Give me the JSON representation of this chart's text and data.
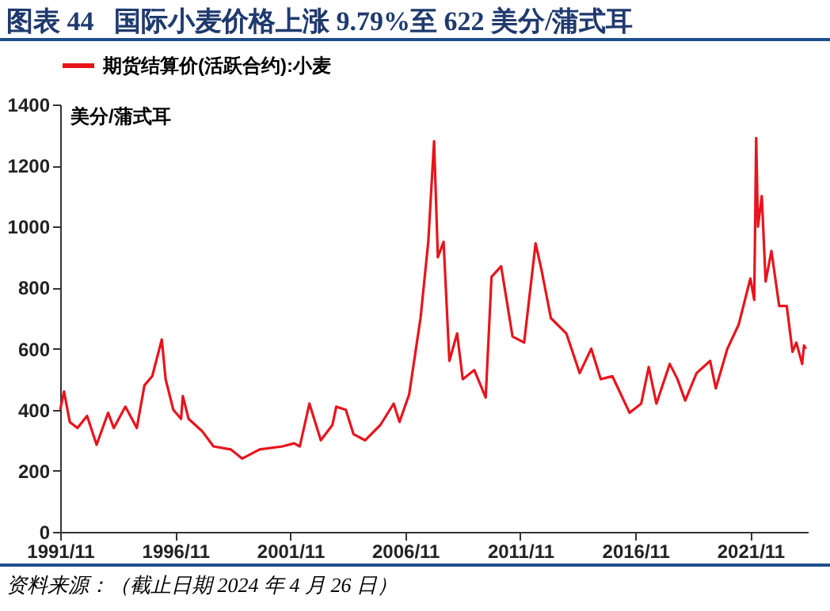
{
  "chart_data": {
    "type": "line",
    "title": "图表 44   国际小麦价格上涨 9.79%至 622 美分/蒲式耳",
    "ylabel": "美分/蒲式耳",
    "annotations": [
      "资料来源：（截止日期 2024 年 4 月 26 日）"
    ],
    "x": [
      "1991-11",
      "1992-01",
      "1992-04",
      "1992-08",
      "1993-01",
      "1993-06",
      "1993-12",
      "1994-03",
      "1994-09",
      "1995-03",
      "1995-07",
      "1995-11",
      "1996-04",
      "1996-06",
      "1996-10",
      "1997-02",
      "1997-03",
      "1997-06",
      "1998-01",
      "1998-07",
      "1999-04",
      "1999-10",
      "2000-07",
      "2001-07",
      "2002-01",
      "2002-04",
      "2002-09",
      "2003-03",
      "2003-09",
      "2003-11",
      "2004-04",
      "2004-08",
      "2005-02",
      "2005-10",
      "2006-05",
      "2006-08",
      "2007-01",
      "2007-07",
      "2007-11",
      "2008-02",
      "2008-04",
      "2008-07",
      "2008-10",
      "2009-02",
      "2009-05",
      "2009-11",
      "2010-05",
      "2010-08",
      "2011-01",
      "2011-07",
      "2012-01",
      "2012-07",
      "2012-10",
      "2013-03",
      "2013-11",
      "2014-06",
      "2014-12",
      "2015-05",
      "2015-11",
      "2016-08",
      "2017-02",
      "2017-06",
      "2017-10",
      "2018-05",
      "2018-09",
      "2019-01",
      "2019-07",
      "2020-02",
      "2020-05",
      "2020-11",
      "2021-05",
      "2021-11",
      "2022-01",
      "2022-02",
      "2022-03",
      "2022-05",
      "2022-07",
      "2022-10",
      "2023-02",
      "2023-06",
      "2023-09",
      "2023-11",
      "2024-02",
      "2024-03",
      "2024-04"
    ],
    "series": [
      {
        "name": "期货结算价(活跃合约):小麦",
        "color": "#e8141c",
        "values": [
          400,
          460,
          360,
          340,
          380,
          285,
          390,
          340,
          410,
          340,
          480,
          510,
          630,
          500,
          400,
          370,
          445,
          370,
          330,
          280,
          270,
          240,
          270,
          280,
          290,
          280,
          420,
          300,
          350,
          410,
          400,
          320,
          300,
          350,
          420,
          360,
          450,
          700,
          950,
          1280,
          900,
          950,
          560,
          650,
          500,
          530,
          440,
          835,
          870,
          640,
          620,
          945,
          860,
          700,
          650,
          520,
          600,
          500,
          510,
          390,
          420,
          540,
          420,
          550,
          500,
          430,
          520,
          560,
          470,
          600,
          680,
          830,
          760,
          1290,
          1000,
          1100,
          820,
          920,
          740,
          740,
          590,
          620,
          550,
          610,
          600
        ]
      }
    ],
    "xlim": [
      "1991-11",
      "2024-05"
    ],
    "xticks": [
      {
        "value": "1991-11",
        "label": "1991/11"
      },
      {
        "value": "1996-11",
        "label": "1996/11"
      },
      {
        "value": "2001-11",
        "label": "2001/11"
      },
      {
        "value": "2006-11",
        "label": "2006/11"
      },
      {
        "value": "2011-11",
        "label": "2011/11"
      },
      {
        "value": "2016-11",
        "label": "2016/11"
      },
      {
        "value": "2021-11",
        "label": "2021/11"
      }
    ],
    "ylim": [
      0,
      1400
    ],
    "yticks": [
      0,
      200,
      400,
      600,
      800,
      1000,
      1200,
      1400
    ],
    "legend": "top"
  }
}
